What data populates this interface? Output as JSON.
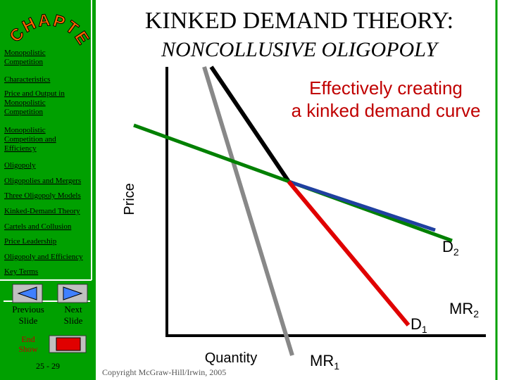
{
  "logo": "CHAPTER",
  "title": "KINKED DEMAND THEORY:",
  "subtitle": "NONCOLLUSIVE OLIGOPOLY",
  "caption": [
    "Effectively creating",
    "a kinked demand curve"
  ],
  "sidebar": [
    "Monopolistic Competition",
    "Characteristics",
    "Price and Output in Monopolistic Competition",
    "Monopolistic Competition and Efficiency",
    "Oligopoly",
    "Oligopolies and Mergers",
    "Three Oligopoly Models",
    "Kinked-Demand Theory",
    "Cartels and Collusion",
    "Price Leadership",
    "Oligopoly and Efficiency",
    "Key Terms"
  ],
  "nav": {
    "previous": "Previous Slide",
    "next": "Next Slide",
    "end": "End Show",
    "page": "25 - 29"
  },
  "diagram": {
    "y_label": "Price",
    "x_label": "Quantity",
    "d2": "D2",
    "d1": "D1",
    "mr1": "MR1",
    "mr2": "MR2"
  },
  "copyright": "Copyright McGraw-Hill/Irwin, 2005"
}
